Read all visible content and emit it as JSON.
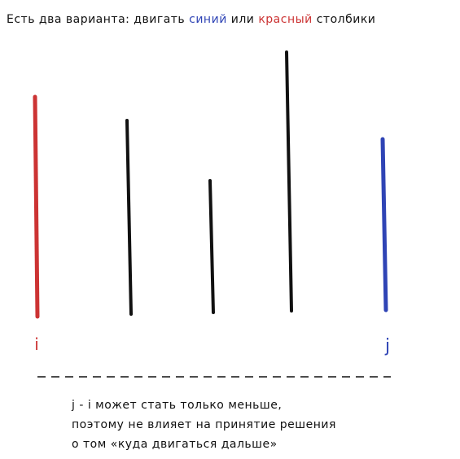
{
  "colors": {
    "blue": "#2f44b5",
    "red": "#cc3333",
    "ink": "#111111"
  },
  "title": {
    "prefix": "Есть два варианта: двигать ",
    "blue_word": "синий",
    "middle": " или ",
    "red_word": "красный",
    "suffix": " столбики"
  },
  "pointers": {
    "left_label": "i",
    "right_label": "j"
  },
  "bars": [
    {
      "name": "red",
      "value": 270,
      "color": "red"
    },
    {
      "name": "black-1",
      "value": 238,
      "color": "ink"
    },
    {
      "name": "black-2",
      "value": 162,
      "color": "ink"
    },
    {
      "name": "black-3",
      "value": 318,
      "color": "ink"
    },
    {
      "name": "blue",
      "value": 210,
      "color": "blue"
    }
  ],
  "note": {
    "line1": "j - i может стать только меньше,",
    "line2": "поэтому не влияет на принятие решения",
    "line3": "о том «куда двигаться дальше»"
  }
}
